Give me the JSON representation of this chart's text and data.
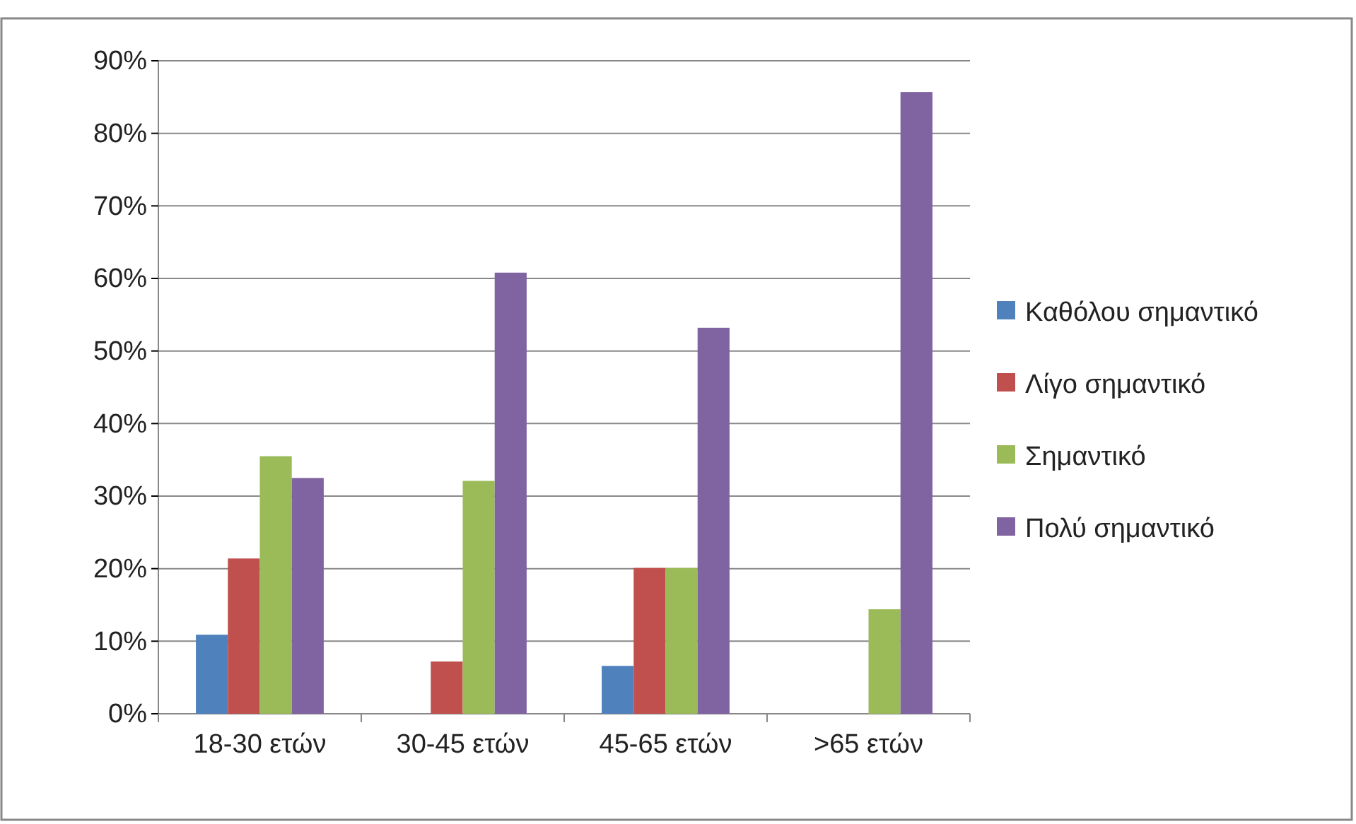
{
  "chart_data": {
    "type": "bar",
    "categories": [
      "18-30 ετών",
      "30-45 ετών",
      "45-65 ετών",
      ">65 ετών"
    ],
    "series": [
      {
        "name": "Καθόλου σημαντικό",
        "color": "#4f81bd",
        "values": [
          10.9,
          0,
          6.6,
          0
        ]
      },
      {
        "name": "Λίγο σημαντικό",
        "color": "#c0504d",
        "values": [
          21.4,
          7.2,
          20.1,
          0
        ]
      },
      {
        "name": "Σημαντικό",
        "color": "#9bbb59",
        "values": [
          35.5,
          32.1,
          20.1,
          14.4
        ]
      },
      {
        "name": "Πολύ σημαντικό",
        "color": "#8064a2",
        "values": [
          32.5,
          60.8,
          53.2,
          85.7
        ]
      }
    ],
    "ylim": [
      0,
      90
    ],
    "yticks": [
      {
        "value": 0,
        "label": "0%"
      },
      {
        "value": 10,
        "label": "10%"
      },
      {
        "value": 20,
        "label": "20%"
      },
      {
        "value": 30,
        "label": "30%"
      },
      {
        "value": 40,
        "label": "40%"
      },
      {
        "value": 50,
        "label": "50%"
      },
      {
        "value": 60,
        "label": "60%"
      },
      {
        "value": 70,
        "label": "70%"
      },
      {
        "value": 80,
        "label": "80%"
      },
      {
        "value": 90,
        "label": "90%"
      }
    ],
    "grid": "y",
    "legend": "right"
  }
}
